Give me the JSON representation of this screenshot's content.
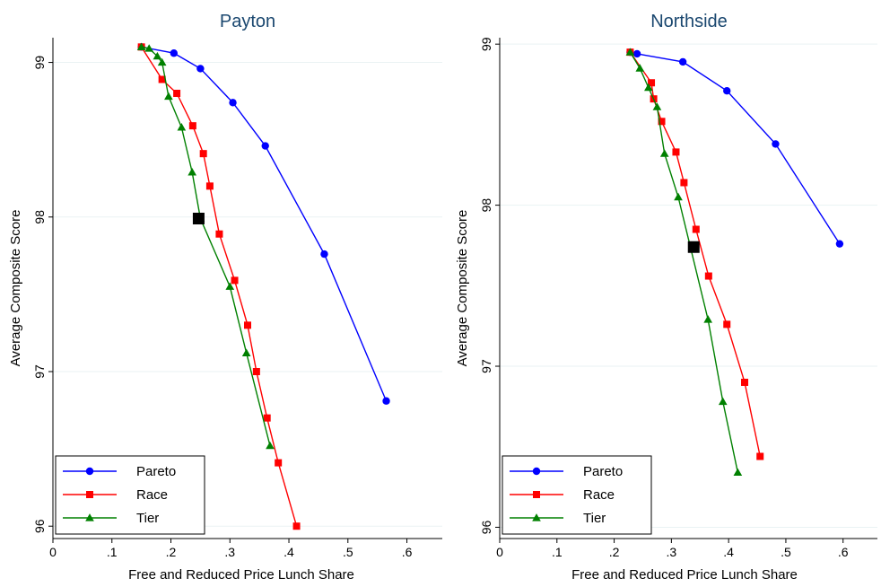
{
  "chart_data": [
    {
      "type": "line",
      "title": "Payton",
      "xlabel": "Free and Reduced Price Lunch Share",
      "ylabel": "Average Composite Score",
      "xlim": [
        0,
        0.66
      ],
      "ylim": [
        95.92,
        99.16
      ],
      "xticks": [
        {
          "value": 0,
          "label": "0"
        },
        {
          "value": 0.1,
          "label": ".1"
        },
        {
          "value": 0.2,
          "label": ".2"
        },
        {
          "value": 0.3,
          "label": ".3"
        },
        {
          "value": 0.4,
          "label": ".4"
        },
        {
          "value": 0.5,
          "label": ".5"
        },
        {
          "value": 0.6,
          "label": ".6"
        }
      ],
      "yticks": [
        {
          "value": 96,
          "label": "96"
        },
        {
          "value": 97,
          "label": "97"
        },
        {
          "value": 98,
          "label": "98"
        },
        {
          "value": 99,
          "label": "99"
        }
      ],
      "grid": "horizontal",
      "legend_position": "bottom-left",
      "series": [
        {
          "name": "Pareto",
          "color": "#0000ff",
          "marker": "circle",
          "x": [
            0.15,
            0.205,
            0.25,
            0.305,
            0.36,
            0.46,
            0.565
          ],
          "y": [
            99.1,
            99.06,
            98.96,
            98.74,
            98.46,
            97.76,
            96.81
          ]
        },
        {
          "name": "Race",
          "color": "#ff0000",
          "marker": "square",
          "x": [
            0.15,
            0.185,
            0.21,
            0.237,
            0.255,
            0.266,
            0.282,
            0.308,
            0.33,
            0.345,
            0.363,
            0.382,
            0.413
          ],
          "y": [
            99.1,
            98.89,
            98.8,
            98.59,
            98.41,
            98.2,
            97.89,
            97.59,
            97.3,
            97.0,
            96.7,
            96.41,
            96.0
          ]
        },
        {
          "name": "Tier",
          "color": "#008000",
          "marker": "triangle",
          "x": [
            0.15,
            0.163,
            0.177,
            0.185,
            0.196,
            0.218,
            0.236,
            0.25,
            0.3,
            0.328,
            0.368
          ],
          "y": [
            99.1,
            99.09,
            99.04,
            99.0,
            98.78,
            98.58,
            98.29,
            97.99,
            97.55,
            97.12,
            96.52
          ]
        }
      ],
      "highlight_point": {
        "x": 0.247,
        "y": 97.99,
        "color": "#000000",
        "marker": "square"
      }
    },
    {
      "type": "line",
      "title": "Northside",
      "xlabel": "Free and Reduced Price Lunch Share",
      "ylabel": "Average Composite Score",
      "xlim": [
        0,
        0.66
      ],
      "ylim": [
        95.93,
        99.04
      ],
      "xticks": [
        {
          "value": 0,
          "label": "0"
        },
        {
          "value": 0.1,
          "label": ".1"
        },
        {
          "value": 0.2,
          "label": ".2"
        },
        {
          "value": 0.3,
          "label": ".3"
        },
        {
          "value": 0.4,
          "label": ".4"
        },
        {
          "value": 0.5,
          "label": ".5"
        },
        {
          "value": 0.6,
          "label": ".6"
        }
      ],
      "yticks": [
        {
          "value": 96,
          "label": "96"
        },
        {
          "value": 97,
          "label": "97"
        },
        {
          "value": 98,
          "label": "98"
        },
        {
          "value": 99,
          "label": "99"
        }
      ],
      "grid": "horizontal",
      "legend_position": "bottom-left",
      "series": [
        {
          "name": "Pareto",
          "color": "#0000ff",
          "marker": "circle",
          "x": [
            0.228,
            0.24,
            0.32,
            0.397,
            0.482,
            0.594
          ],
          "y": [
            98.95,
            98.94,
            98.89,
            98.71,
            98.38,
            97.76
          ]
        },
        {
          "name": "Race",
          "color": "#ff0000",
          "marker": "square",
          "x": [
            0.228,
            0.265,
            0.269,
            0.283,
            0.308,
            0.322,
            0.343,
            0.365,
            0.397,
            0.428,
            0.455
          ],
          "y": [
            98.95,
            98.76,
            98.66,
            98.52,
            98.33,
            98.14,
            97.85,
            97.56,
            97.26,
            96.9,
            96.44
          ]
        },
        {
          "name": "Tier",
          "color": "#008000",
          "marker": "triangle",
          "x": [
            0.228,
            0.245,
            0.26,
            0.275,
            0.288,
            0.312,
            0.364,
            0.39,
            0.416
          ],
          "y": [
            98.95,
            98.85,
            98.73,
            98.61,
            98.32,
            98.05,
            97.29,
            96.78,
            96.34
          ]
        }
      ],
      "highlight_point": {
        "x": 0.339,
        "y": 97.74,
        "color": "#000000",
        "marker": "square"
      }
    }
  ]
}
